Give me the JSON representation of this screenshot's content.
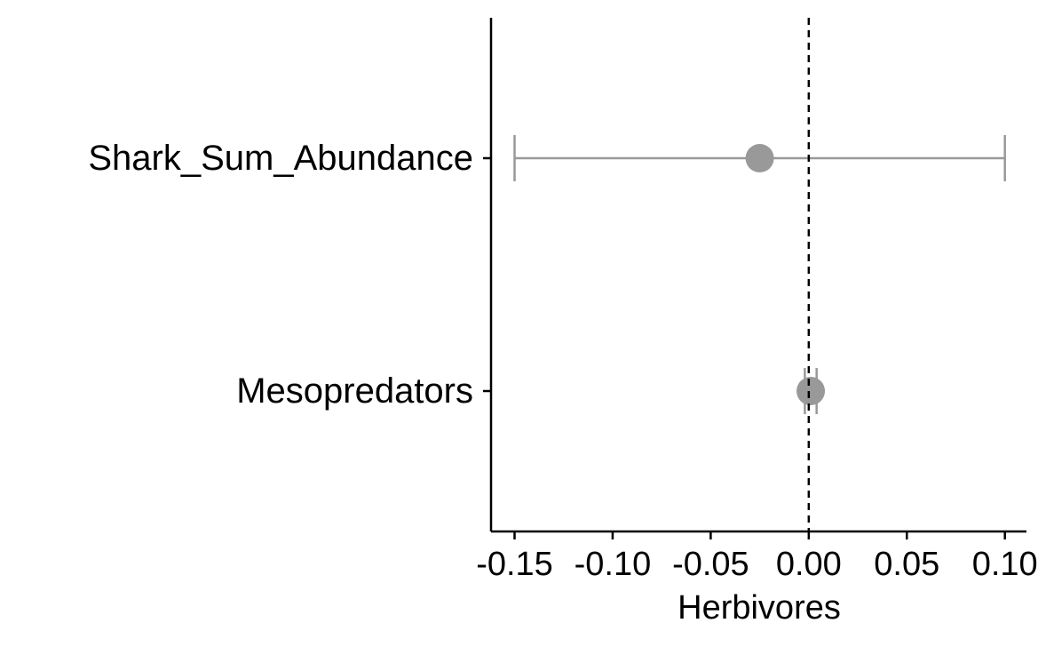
{
  "chart_data": {
    "type": "scatter",
    "subtype": "coefficient-plot",
    "xlabel": "Herbivores",
    "ylabel": "",
    "xlim": [
      -0.162,
      0.111
    ],
    "x_ticks": [
      -0.15,
      -0.1,
      -0.05,
      0.0,
      0.05,
      0.1
    ],
    "x_tick_labels": [
      "-0.15",
      "-0.10",
      "-0.05",
      "0.00",
      "0.05",
      "0.10"
    ],
    "reference_line": {
      "x": 0,
      "style": "dashed",
      "color": "#000000"
    },
    "categories": [
      "Shark_Sum_Abundance",
      "Mesopredators"
    ],
    "points": [
      {
        "category": "Shark_Sum_Abundance",
        "estimate": -0.025,
        "lower": -0.15,
        "upper": 0.1
      },
      {
        "category": "Mesopredators",
        "estimate": 0.001,
        "lower": -0.002,
        "upper": 0.004
      }
    ],
    "point_color": "#999999",
    "grid": false,
    "legend": "none"
  }
}
